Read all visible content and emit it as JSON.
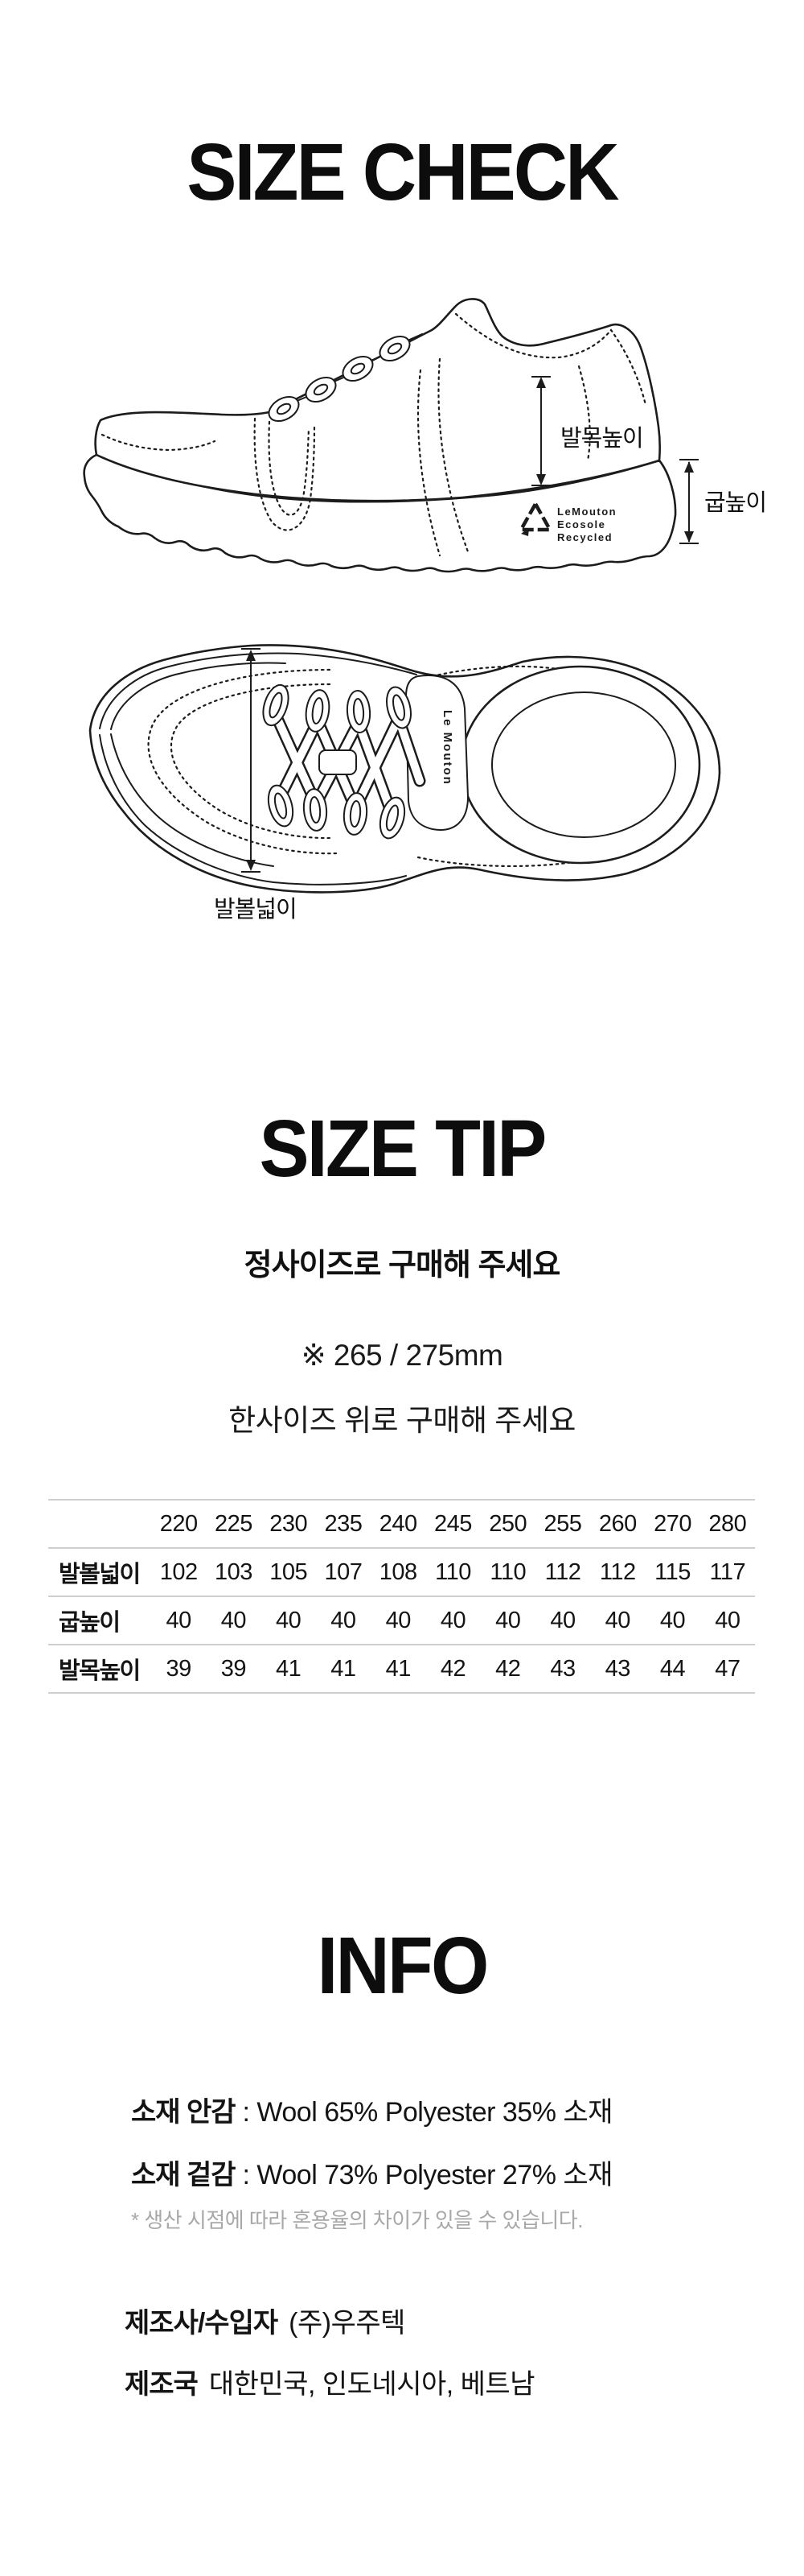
{
  "size_check": {
    "title": "SIZE CHECK",
    "side_view": {
      "ankle_label": "발목높이",
      "heel_label": "굽높이",
      "sole_logo_line1": "LeMouton",
      "sole_logo_line2": "Ecosole",
      "sole_logo_line3": "Recycled"
    },
    "top_view": {
      "width_label": "발볼넓이",
      "tongue_brand": "Le Mouton"
    }
  },
  "size_tip": {
    "title": "SIZE TIP",
    "subtitle": "정사이즈로 구매해 주세요",
    "note1": "※ 265 / 275mm",
    "note2": "한사이즈 위로 구매해 주세요"
  },
  "size_table": {
    "columns": [
      "220",
      "225",
      "230",
      "235",
      "240",
      "245",
      "250",
      "255",
      "260",
      "270",
      "280"
    ],
    "rows": [
      {
        "label": "발볼넓이",
        "values": [
          "102",
          "103",
          "105",
          "107",
          "108",
          "110",
          "110",
          "112",
          "112",
          "115",
          "117"
        ]
      },
      {
        "label": "굽높이",
        "values": [
          "40",
          "40",
          "40",
          "40",
          "40",
          "40",
          "40",
          "40",
          "40",
          "40",
          "40"
        ]
      },
      {
        "label": "발목높이",
        "values": [
          "39",
          "39",
          "41",
          "41",
          "41",
          "42",
          "42",
          "43",
          "43",
          "44",
          "47"
        ]
      }
    ]
  },
  "info": {
    "title": "INFO",
    "material_inner_label": "소재 안감",
    "material_inner_value": ": Wool 65% Polyester 35% 소재",
    "material_outer_label": "소재 겉감",
    "material_outer_value": ": Wool 73% Polyester 27% 소재",
    "footnote": "* 생산 시점에 따라 혼용율의 차이가 있을 수 있습니다.",
    "manufacturer_label": "제조사/수입자",
    "manufacturer_value": "(주)우주텍",
    "country_label": "제조국",
    "country_value": "대한민국, 인도네시아, 베트남"
  },
  "colors": {
    "ink": "#111111",
    "line_art": "#1c1c1c",
    "table_rule": "#cfcfcf",
    "footnote_gray": "#a8a8a8"
  }
}
